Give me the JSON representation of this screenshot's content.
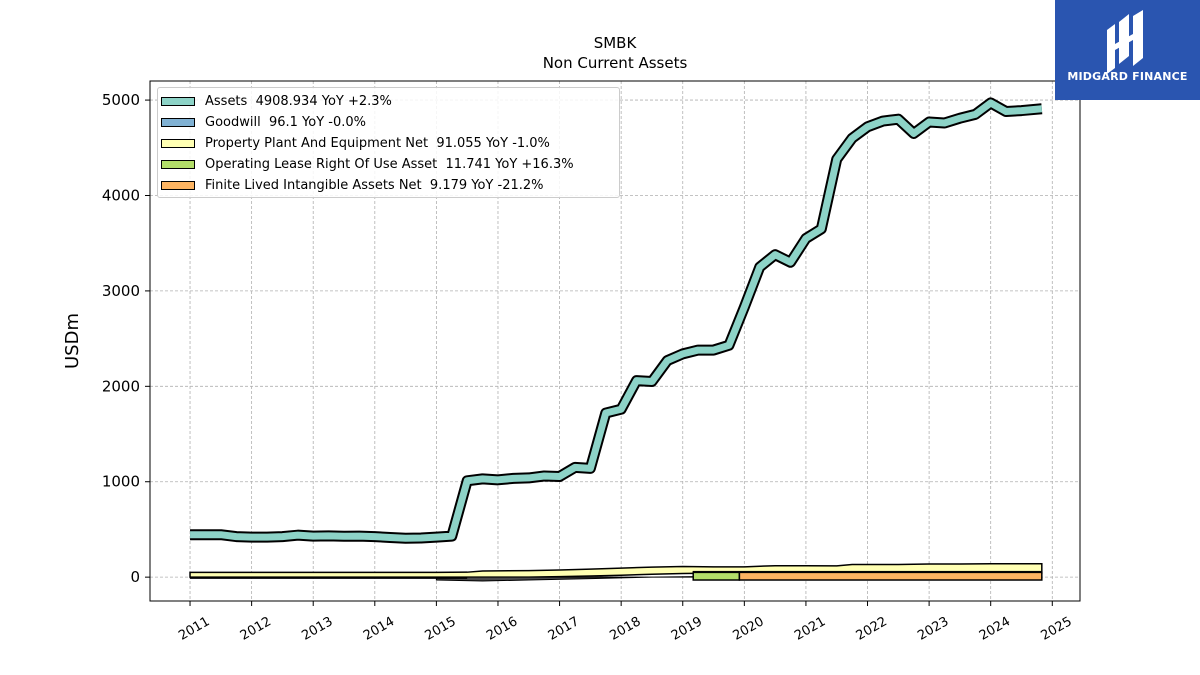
{
  "header": {
    "ticker": "SMBK",
    "subtitle": "Non Current  Assets"
  },
  "logo": {
    "brand": "MIDGARD FINANCE",
    "background": "#2a55b0"
  },
  "chart_data": {
    "type": "area",
    "title": "SMBK",
    "subtitle": "Non Current  Assets",
    "ylabel": "USDm",
    "xlabel": "",
    "xlim": [
      2010.35,
      2025.45
    ],
    "ylim": [
      -250,
      5200
    ],
    "yticks": [
      0,
      1000,
      2000,
      3000,
      4000,
      5000
    ],
    "xticks": [
      "2011",
      "2012",
      "2013",
      "2014",
      "2015",
      "2016",
      "2017",
      "2018",
      "2019",
      "2020",
      "2021",
      "2022",
      "2023",
      "2024",
      "2025"
    ],
    "grid": true,
    "legend_position": "top-left",
    "series": [
      {
        "name": "Assets",
        "legend": "Assets  4908.934 YoY +2.3%",
        "color": "#8dd3c7",
        "x": [
          2011.0,
          2011.25,
          2011.5,
          2011.75,
          2012.0,
          2012.25,
          2012.5,
          2012.75,
          2013.0,
          2013.25,
          2013.5,
          2013.75,
          2014.0,
          2014.25,
          2014.5,
          2014.75,
          2015.0,
          2015.25,
          2015.5,
          2015.75,
          2016.0,
          2016.25,
          2016.5,
          2016.75,
          2017.0,
          2017.25,
          2017.5,
          2017.75,
          2018.0,
          2018.25,
          2018.5,
          2018.75,
          2019.0,
          2019.25,
          2019.5,
          2019.75,
          2020.0,
          2020.25,
          2020.5,
          2020.75,
          2021.0,
          2021.25,
          2021.5,
          2021.75,
          2022.0,
          2022.25,
          2022.5,
          2022.75,
          2023.0,
          2023.25,
          2023.5,
          2023.75,
          2024.0,
          2024.25,
          2024.5,
          2024.83
        ],
        "values": [
          445,
          445,
          445,
          425,
          420,
          420,
          425,
          440,
          430,
          432,
          428,
          430,
          425,
          415,
          408,
          410,
          420,
          430,
          1010,
          1030,
          1020,
          1035,
          1040,
          1060,
          1055,
          1150,
          1140,
          1720,
          1760,
          2060,
          2050,
          2270,
          2340,
          2380,
          2380,
          2430,
          2830,
          3250,
          3380,
          3300,
          3550,
          3650,
          4380,
          4600,
          4720,
          4780,
          4800,
          4650,
          4770,
          4760,
          4810,
          4850,
          4970,
          4880,
          4890,
          4909
        ],
        "fill_base": "next"
      },
      {
        "name": "Goodwill",
        "legend": "Goodwill  96.1 YoY -0.0%",
        "color": "#80b1d3",
        "x": [
          2019.17,
          2024.83
        ],
        "values": [
          96.1,
          96.1
        ],
        "fill_base": "zero"
      },
      {
        "name": "Property Plant And Equipment Net",
        "legend": "Property Plant And Equipment Net  91.055 YoY -1.0%",
        "color": "#ffffb3",
        "x": [
          2011.0,
          2012.0,
          2013.0,
          2014.0,
          2015.0,
          2015.5,
          2015.75,
          2016.5,
          2017.0,
          2017.5,
          2018.0,
          2018.5,
          2019.0,
          2019.5,
          2020.0,
          2020.5,
          2021.0,
          2021.5,
          2021.75,
          2022.5,
          2023.0,
          2023.5,
          2024.0,
          2024.83
        ],
        "values": [
          30,
          30,
          30,
          30,
          30,
          32,
          45,
          48,
          55,
          62,
          70,
          80,
          88,
          92,
          94,
          96,
          95,
          93,
          92,
          93,
          93,
          92,
          92,
          91.055
        ],
        "upper": [
          50,
          50,
          50,
          50,
          50,
          52,
          65,
          68,
          75,
          84,
          95,
          105,
          112,
          108,
          108,
          120,
          120,
          118,
          132,
          132,
          138,
          138,
          140,
          140
        ],
        "fill_base": "zero"
      },
      {
        "name": "Operating Lease Right Of Use Asset",
        "legend": "Operating Lease Right Of Use Asset  11.741 YoY +16.3%",
        "color": "#b3de69",
        "x": [
          2019.17,
          2019.92
        ],
        "values": [
          11.741,
          11.741
        ],
        "fill_base": "zero"
      },
      {
        "name": "Finite Lived Intangible Assets Net",
        "legend": "Finite Lived Intangible Assets Net  9.179 YoY -21.2%",
        "color": "#fdb462",
        "x": [
          2019.92,
          2024.83
        ],
        "values": [
          9.179,
          9.179
        ],
        "fill_base": "zero"
      }
    ]
  }
}
